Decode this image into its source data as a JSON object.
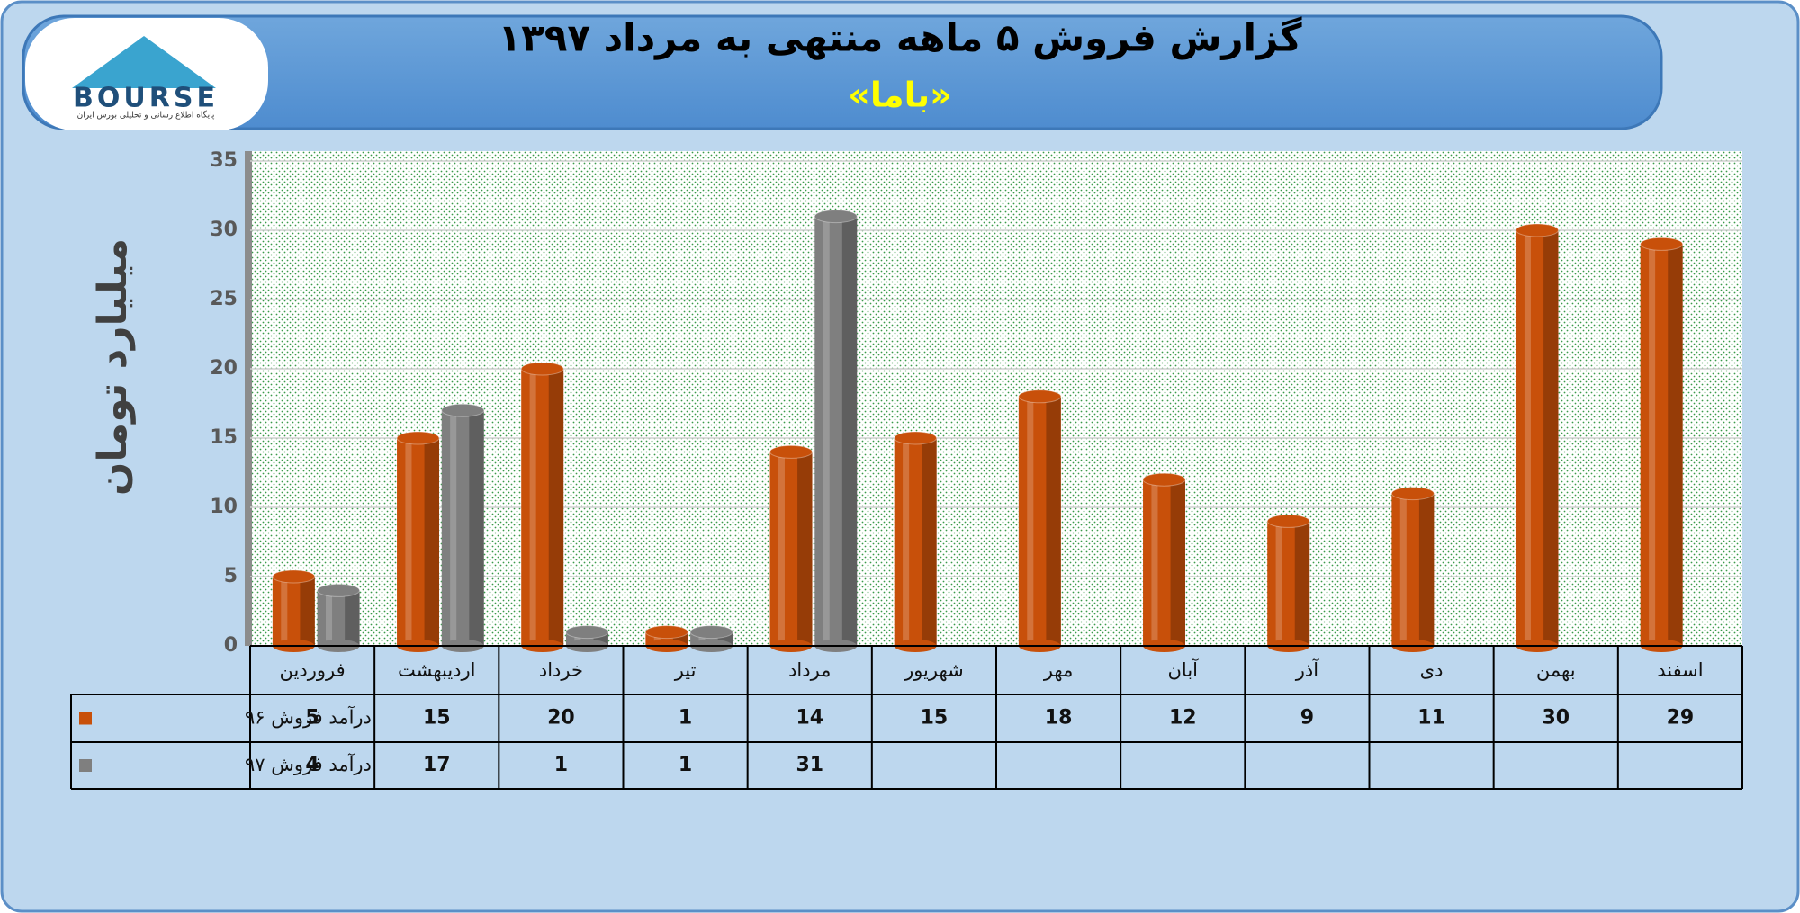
{
  "logo": {
    "text": "BOURSE",
    "tagline": "پایگاه اطلاع رسانی و تحلیلی بورس ایران"
  },
  "chart_data": {
    "type": "bar",
    "title": "گزارش فروش ۵ ماهه منتهی به مرداد ۱۳۹۷",
    "subtitle": "«باما»",
    "ylabel": "میلیارد تومان",
    "categories": [
      "فروردین",
      "اردیبهشت",
      "خرداد",
      "تیر",
      "مرداد",
      "شهریور",
      "مهر",
      "آبان",
      "آذر",
      "دی",
      "بهمن",
      "اسفند"
    ],
    "series": [
      {
        "name": "درآمد فروش ۹۶",
        "color": "#c8500a",
        "values": [
          5,
          15,
          20,
          1,
          14,
          15,
          18,
          12,
          9,
          11,
          30,
          29
        ]
      },
      {
        "name": "درآمد فروش ۹۷",
        "color": "#7f7f7f",
        "values": [
          4,
          17,
          1,
          1,
          31,
          null,
          null,
          null,
          null,
          null,
          null,
          null
        ]
      }
    ],
    "ylim": [
      0,
      35
    ],
    "yticks": [
      0,
      5,
      10,
      15,
      20,
      25,
      30,
      35
    ],
    "grid": true
  }
}
